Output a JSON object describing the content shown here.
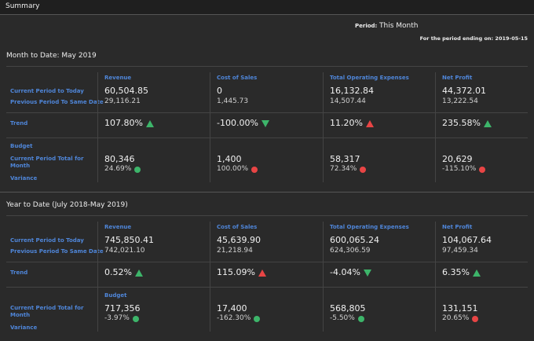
{
  "header": {
    "title": "Summary",
    "period_label": "Period:",
    "period_value": "This Month",
    "period_ending": "For the period ending on: 2019-05-15"
  },
  "sections": [
    {
      "title": "Month to Date: May 2019",
      "row_labels": {
        "current": "Current Period to Today",
        "previous": "Previous Period To Same Date",
        "trend": "Trend",
        "budget": "Budget",
        "total": "Current Period Total for Month",
        "variance": "Variance"
      },
      "columns": [
        {
          "name": "Revenue",
          "current": "60,504.85",
          "previous": "29,116.21",
          "trend": "107.80%",
          "trend_arrow": "up",
          "trend_color": "#3db56a",
          "budget": "80,346",
          "variance": "24.69%",
          "variance_color": "#3db56a"
        },
        {
          "name": "Cost of Sales",
          "current": "0",
          "previous": "1,445.73",
          "trend": "-100.00%",
          "trend_arrow": "down",
          "trend_color": "#3db56a",
          "budget": "1,400",
          "variance": "100.00%",
          "variance_color": "#e84545"
        },
        {
          "name": "Total Operating Expenses",
          "current": "16,132.84",
          "previous": "14,507.44",
          "trend": "11.20%",
          "trend_arrow": "up",
          "trend_color": "#e84545",
          "budget": "58,317",
          "variance": "72.34%",
          "variance_color": "#e84545"
        },
        {
          "name": "Net Profit",
          "current": "44,372.01",
          "previous": "13,222.54",
          "trend": "235.58%",
          "trend_arrow": "up",
          "trend_color": "#3db56a",
          "budget": "20,629",
          "variance": "-115.10%",
          "variance_color": "#e84545"
        }
      ]
    },
    {
      "title": "Year to Date (July 2018-May 2019)",
      "row_labels": {
        "current": "Current Period to Today",
        "previous": "Previous Period To Same Date",
        "trend": "Trend",
        "total": "Current Period Total for Month",
        "variance": "Variance"
      },
      "budget_label": "Budget",
      "columns": [
        {
          "name": "Revenue",
          "current": "745,850.41",
          "previous": "742,021.10",
          "trend": "0.52%",
          "trend_arrow": "up",
          "trend_color": "#3db56a",
          "budget": "717,356",
          "variance": "-3.97%",
          "variance_color": "#3db56a"
        },
        {
          "name": "Cost of Sales",
          "current": "45,639.90",
          "previous": "21,218.94",
          "trend": "115.09%",
          "trend_arrow": "up",
          "trend_color": "#e84545",
          "budget": "17,400",
          "variance": "-162.30%",
          "variance_color": "#3db56a"
        },
        {
          "name": "Total Operating Expenses",
          "current": "600,065.24",
          "previous": "624,306.59",
          "trend": "-4.04%",
          "trend_arrow": "down",
          "trend_color": "#3db56a",
          "budget": "568,805",
          "variance": "-5.50%",
          "variance_color": "#3db56a"
        },
        {
          "name": "Net Profit",
          "current": "104,067.64",
          "previous": "97,459.34",
          "trend": "6.35%",
          "trend_arrow": "up",
          "trend_color": "#3db56a",
          "budget": "131,151",
          "variance": "20.65%",
          "variance_color": "#e84545"
        }
      ]
    }
  ]
}
